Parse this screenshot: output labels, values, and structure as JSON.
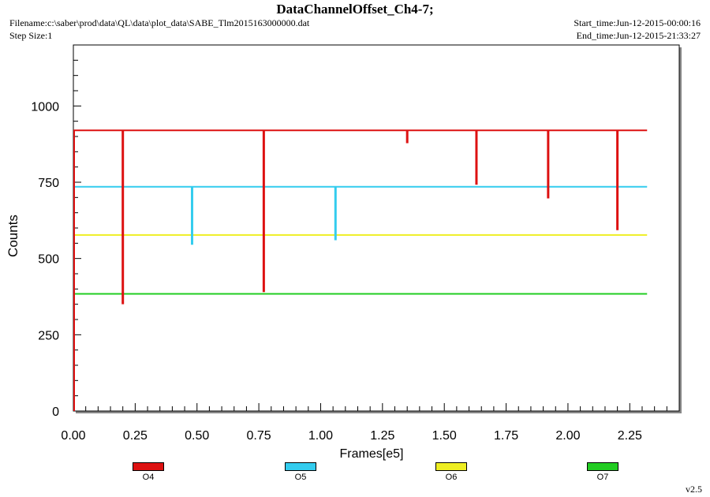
{
  "header": {
    "filename": "Filename:c:\\saber\\prod\\data\\QL\\data\\plot_data\\SABE_Tlm2015163000000.dat",
    "step_size": "Step Size:1",
    "start_time": "Start_time:Jun-12-2015-00:00:16",
    "end_time": "End_time:Jun-12-2015-21:33:27"
  },
  "footer": {
    "version": "v2.5"
  },
  "chart_data": {
    "type": "line",
    "title": "DataChannelOffset_Ch4-7;",
    "xlabel": "Frames[e5]",
    "ylabel": "Counts",
    "xlim": [
      0,
      2.45
    ],
    "ylim": [
      0,
      1200
    ],
    "x_ticks": [
      "0.00",
      "0.25",
      "0.50",
      "0.75",
      "1.00",
      "1.25",
      "1.50",
      "1.75",
      "2.00",
      "2.25"
    ],
    "y_ticks": [
      "0",
      "250",
      "500",
      "750",
      "1000"
    ],
    "grid": false,
    "legend_position": "bottom",
    "x_range": [
      0,
      2.32
    ],
    "series": [
      {
        "name": "O4",
        "color": "#dd1111",
        "level": 920,
        "dips": [
          {
            "x": 0.2,
            "y": 350
          },
          {
            "x": 0.77,
            "y": 390
          },
          {
            "x": 1.35,
            "y": 878
          },
          {
            "x": 1.63,
            "y": 742
          },
          {
            "x": 1.92,
            "y": 697
          },
          {
            "x": 2.2,
            "y": 593
          }
        ]
      },
      {
        "name": "O5",
        "color": "#33ccee",
        "level": 735,
        "dips": [
          {
            "x": 0.48,
            "y": 545
          },
          {
            "x": 1.06,
            "y": 560
          }
        ]
      },
      {
        "name": "O6",
        "color": "#eeee22",
        "level": 577,
        "dips": []
      },
      {
        "name": "O7",
        "color": "#22cc22",
        "level": 384,
        "dips": []
      }
    ]
  }
}
